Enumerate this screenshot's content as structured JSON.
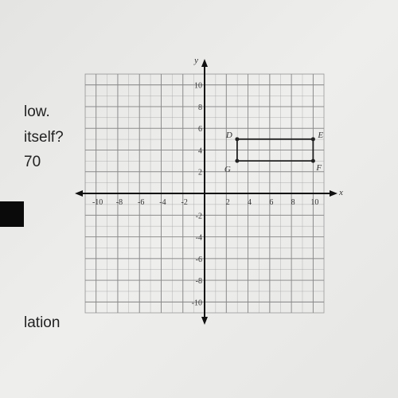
{
  "page_text": [
    "low.",
    "itself?",
    "70",
    "lation"
  ],
  "chart_data": {
    "type": "polygon",
    "x_label": "x",
    "y_label": "y",
    "x": [
      3,
      10,
      10,
      3
    ],
    "values": [
      5,
      5,
      3,
      3
    ],
    "point_labels": [
      "D",
      "E",
      "F",
      "G"
    ],
    "color": "#222222",
    "xlim": [
      -11,
      11
    ],
    "ylim": [
      -11,
      11
    ],
    "xticks": [
      -10,
      -8,
      -6,
      -4,
      -2,
      2,
      4,
      6,
      8,
      10
    ],
    "yticks": [
      -10,
      -8,
      -6,
      -4,
      -2,
      2,
      4,
      6,
      8,
      10
    ],
    "grid": true
  }
}
